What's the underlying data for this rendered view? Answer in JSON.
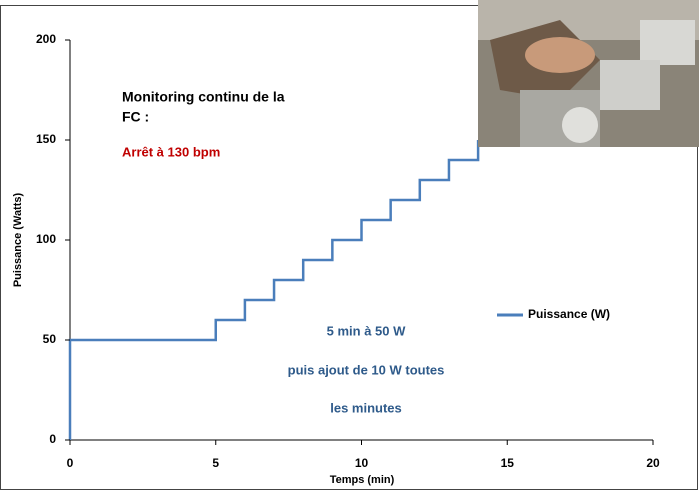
{
  "chart_data": {
    "type": "line",
    "x": [
      0,
      0,
      5,
      5,
      6,
      6,
      7,
      7,
      8,
      8,
      9,
      9,
      10,
      10,
      11,
      11,
      12,
      12,
      13,
      13,
      14,
      14
    ],
    "series": [
      {
        "name": "Puissance (W)",
        "color": "#4a7ebb",
        "values": [
          0,
          50,
          50,
          60,
          60,
          70,
          70,
          80,
          80,
          90,
          90,
          100,
          100,
          110,
          110,
          120,
          120,
          130,
          130,
          140,
          140,
          150
        ]
      }
    ],
    "xlim": [
      0,
      20
    ],
    "xticks": [
      0,
      5,
      10,
      15,
      20
    ],
    "ylim": [
      0,
      200
    ],
    "yticks": [
      0,
      50,
      100,
      150,
      200
    ],
    "x_label": "Temps (min)",
    "y_label": "Puissance (Watts)",
    "legend": "right",
    "annotations": [
      "Monitoring continu de la",
      "FC :",
      "Arrêt à 130 bpm",
      "5 min à 50 W",
      "puis ajout de 10 W toutes",
      "les minutes"
    ]
  }
}
